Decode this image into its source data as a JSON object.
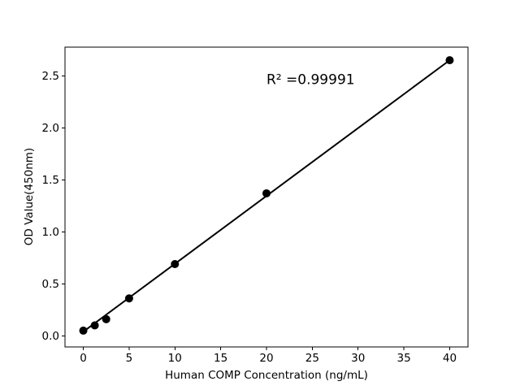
{
  "figure": {
    "background": "#ffffff"
  },
  "chart_data": {
    "type": "scatter",
    "title": "",
    "xlabel": "Human COMP Concentration (ng/mL)",
    "ylabel": "OD Value(450nm)",
    "annotation": "R² =0.99991",
    "annotation_pos": {
      "x": 20,
      "y": 2.42
    },
    "x": [
      0,
      1.25,
      2.5,
      5,
      10,
      20,
      40
    ],
    "y": [
      0.05,
      0.1,
      0.16,
      0.36,
      0.69,
      1.37,
      2.65
    ],
    "fit_line": {
      "x": [
        0,
        40
      ],
      "y": [
        0.04,
        2.65
      ]
    },
    "xticks": {
      "values": [
        0,
        5,
        10,
        15,
        20,
        25,
        30,
        35,
        40
      ],
      "labels": [
        "0",
        "5",
        "10",
        "15",
        "20",
        "25",
        "30",
        "35",
        "40"
      ]
    },
    "yticks": {
      "values": [
        0,
        0.5,
        1,
        1.5,
        2,
        2.5
      ],
      "labels": [
        "0.0",
        "0.5",
        "1.0",
        "1.5",
        "2.0",
        "2.5"
      ]
    },
    "xlim": [
      -2,
      42
    ],
    "ylim": [
      -0.107,
      2.776
    ],
    "grid": false,
    "legend": null,
    "colors": {
      "line": "#000000",
      "marker": "#000000",
      "axis": "#000000",
      "text": "#000000",
      "background": "#ffffff"
    }
  }
}
